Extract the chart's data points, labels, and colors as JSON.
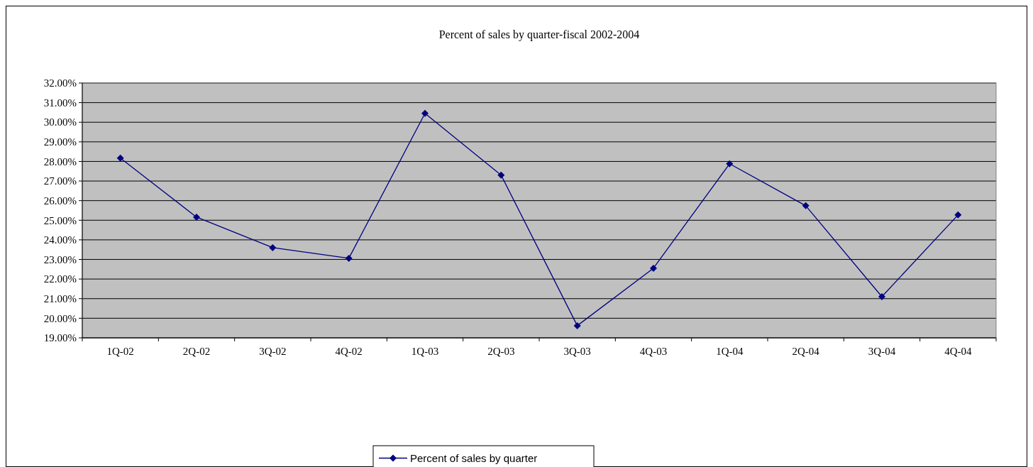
{
  "chart_data": {
    "type": "line",
    "title": "Percent of sales by quarter-fiscal 2002-2004",
    "categories": [
      "1Q-02",
      "2Q-02",
      "3Q-02",
      "4Q-02",
      "1Q-03",
      "2Q-03",
      "3Q-03",
      "4Q-03",
      "1Q-04",
      "2Q-04",
      "3Q-04",
      "4Q-04"
    ],
    "series": [
      {
        "name": "Percent of sales by quarter",
        "color": "#000080",
        "values": [
          28.17,
          25.16,
          23.6,
          23.06,
          30.45,
          27.3,
          19.62,
          22.55,
          27.88,
          25.74,
          21.1,
          25.27
        ]
      }
    ],
    "ylim": [
      19,
      32
    ],
    "yticks": [
      {
        "value": 19,
        "label": "19.00%"
      },
      {
        "value": 20,
        "label": "20.00%"
      },
      {
        "value": 21,
        "label": "21.00%"
      },
      {
        "value": 22,
        "label": "22.00%"
      },
      {
        "value": 23,
        "label": "23.00%"
      },
      {
        "value": 24,
        "label": "24.00%"
      },
      {
        "value": 25,
        "label": "25.00%"
      },
      {
        "value": 26,
        "label": "26.00%"
      },
      {
        "value": 27,
        "label": "27.00%"
      },
      {
        "value": 28,
        "label": "28.00%"
      },
      {
        "value": 29,
        "label": "29.00%"
      },
      {
        "value": 30,
        "label": "30.00%"
      },
      {
        "value": 31,
        "label": "31.00%"
      },
      {
        "value": 32,
        "label": "32.00%"
      }
    ],
    "grid": "y",
    "legend": "bottom",
    "marker": "diamond",
    "line_style": "solid"
  }
}
